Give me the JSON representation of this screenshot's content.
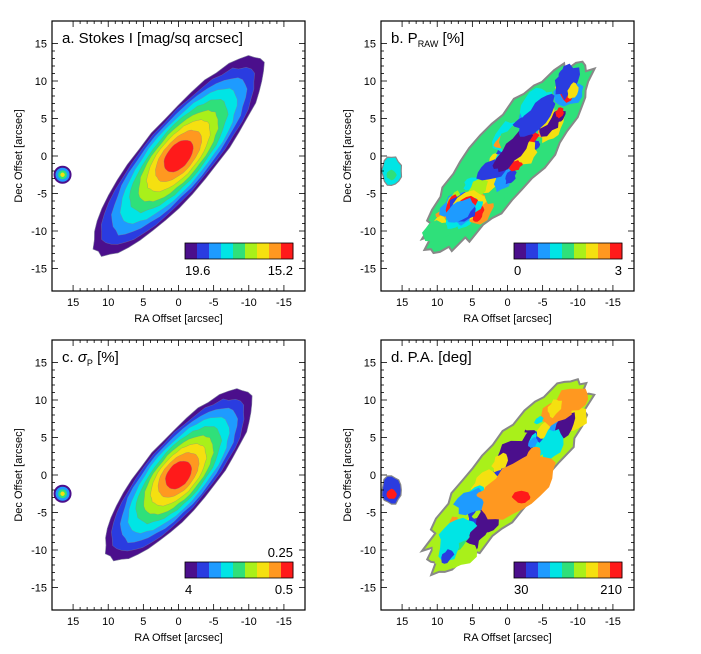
{
  "figure": {
    "xlabel": "RA Offset [arcsec]",
    "ylabel": "Dec Offset [arcsec]",
    "x_range": [
      18,
      -18
    ],
    "y_range": [
      -18,
      18
    ],
    "x_ticks": [
      15,
      10,
      5,
      0,
      -5,
      -10,
      -15
    ],
    "y_ticks": [
      -15,
      -10,
      -5,
      0,
      5,
      10,
      15
    ]
  },
  "chart_data": [
    {
      "type": "heatmap",
      "title": "a. Stokes I [mag/sq arcsec]",
      "colorbar": {
        "colors": [
          "#4b0f8c",
          "#2a3ce0",
          "#1e9bff",
          "#00e5e5",
          "#2fe07a",
          "#a9f01a",
          "#f5e010",
          "#ff9820",
          "#ff1a1a"
        ],
        "label_left": "19.6",
        "label_right": "15.2",
        "label_top": ""
      },
      "levels": [
        19.6,
        19.05,
        18.5,
        17.95,
        17.4,
        16.85,
        16.3,
        15.75,
        15.2
      ],
      "kind": "smooth"
    },
    {
      "type": "heatmap",
      "title_main": "b. P",
      "title_sub": "RAW",
      "title_tail": " [%]",
      "colorbar": {
        "colors": [
          "#4b0f8c",
          "#2a3ce0",
          "#1e9bff",
          "#00e5e5",
          "#2fe07a",
          "#a9f01a",
          "#f5e010",
          "#ff9820",
          "#ff1a1a"
        ],
        "label_left": "0",
        "label_right": "3",
        "label_top": ""
      },
      "levels": [
        0,
        0.375,
        0.75,
        1.125,
        1.5,
        1.875,
        2.25,
        2.625,
        3
      ],
      "kind": "noisy"
    },
    {
      "type": "heatmap",
      "title_main": "c. ",
      "title_sigma": "σ",
      "title_sub": "P",
      "title_tail": " [%]",
      "colorbar": {
        "colors": [
          "#4b0f8c",
          "#2a3ce0",
          "#1e9bff",
          "#00e5e5",
          "#2fe07a",
          "#a9f01a",
          "#f5e010",
          "#ff9820",
          "#ff1a1a"
        ],
        "label_left": "4",
        "label_right": "0.5",
        "label_top": "0.25"
      },
      "levels": [
        4,
        3.5,
        3,
        2.5,
        2,
        1.5,
        1,
        0.5,
        0.25
      ],
      "kind": "smooth_inv"
    },
    {
      "type": "heatmap",
      "title": "d. P.A. [deg]",
      "colorbar": {
        "colors": [
          "#4b0f8c",
          "#2a3ce0",
          "#1e9bff",
          "#00e5e5",
          "#2fe07a",
          "#a9f01a",
          "#f5e010",
          "#ff9820",
          "#ff1a1a"
        ],
        "label_left": "30",
        "label_right": "210",
        "label_top": ""
      },
      "levels": [
        30,
        52.5,
        75,
        97.5,
        120,
        142.5,
        165,
        187.5,
        210
      ],
      "kind": "pa"
    }
  ]
}
